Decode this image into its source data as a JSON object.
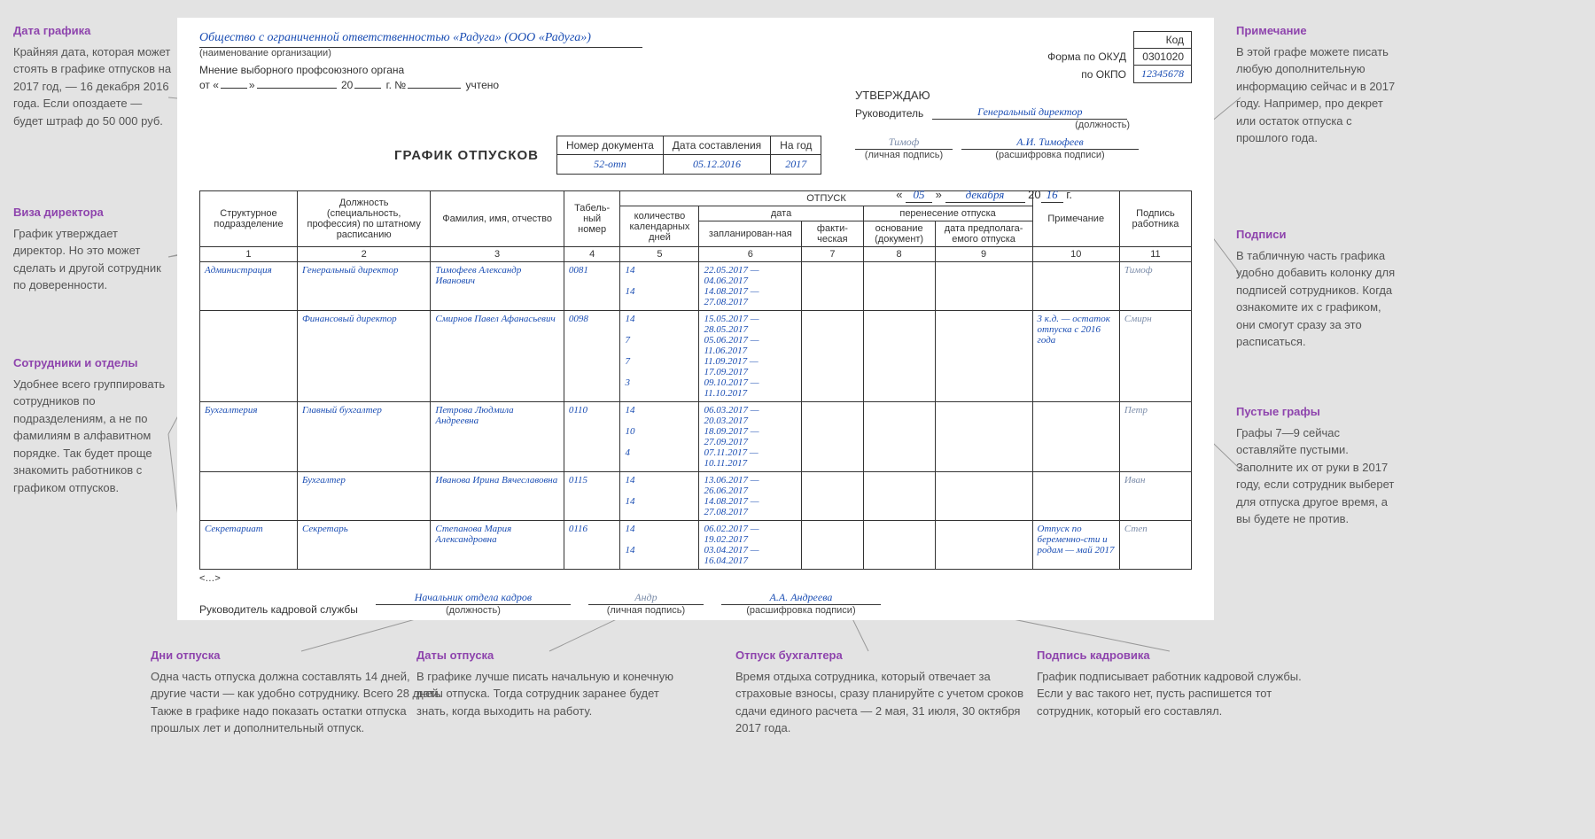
{
  "annotations": {
    "left1": {
      "title": "Дата графика",
      "body": "Крайняя дата, которая может стоять в графике отпусков на 2017 год, — 16 декабря 2016 года. Если опоздаете — будет штраф до 50 000 руб."
    },
    "left2": {
      "title": "Виза директора",
      "body": "График утверждает директор. Но это может сделать и другой сотрудник по доверенности."
    },
    "left3": {
      "title": "Сотрудники и отделы",
      "body": "Удобнее всего группировать сотрудников по подразделениям, а не по фамилиям в алфавитном порядке. Так будет проще знакомить работников с графиком отпусков."
    },
    "right1": {
      "title": "Примечание",
      "body": "В этой графе можете писать любую дополнительную информацию сейчас и в 2017 году. Например, про декрет или остаток отпуска с прошлого года."
    },
    "right2": {
      "title": "Подписи",
      "body": "В табличную часть графика удобно добавить колонку для подписей сотрудников. Когда ознакомите их с графиком, они смогут сразу за это расписаться."
    },
    "right3": {
      "title": "Пустые графы",
      "body": "Графы 7—9 сейчас оставляйте пустыми. Заполните их от руки в 2017 году, если сотрудник выберет для отпуска другое время, а вы будете не против."
    },
    "bottom1": {
      "title": "Дни отпуска",
      "body": "Одна часть отпуска должна составлять 14 дней, другие части — как удобно сотруднику. Всего 28 дней. Также в графике надо показать остатки отпуска прошлых лет и дополнительный отпуск."
    },
    "bottom2": {
      "title": "Даты отпуска",
      "body": "В графике лучше писать начальную и конечную даты отпуска. Тогда сотрудник заранее будет знать, когда выходить на работу."
    },
    "bottom3": {
      "title": "Отпуск бухгалтера",
      "body": "Время отдыха сотрудника, который отвечает за страховые взносы, сразу планируйте с учетом сроков сдачи единого расчета — 2 мая, 31 июля, 30 октября 2017 года."
    },
    "bottom4": {
      "title": "Подпись кадровика",
      "body": "График подписывает работник кадровой службы. Если у вас такого нет, пусть распишется тот сотрудник, который его составлял."
    }
  },
  "doc": {
    "org_name": "Общество с ограниченной ответственностью «Радуга» (ООО «Радуга»)",
    "org_label": "(наименование организации)",
    "prof_line": "Мнение выборного профсоюзного органа",
    "prof_from": "от «",
    "prof_year": "20",
    "prof_num": "г. №",
    "prof_accounted": "учтено",
    "code_label": "Код",
    "okud_label": "Форма по ОКУД",
    "okud_value": "0301020",
    "okpo_label": "по ОКПО",
    "okpo_value": "12345678",
    "approve": "УТВЕРЖДАЮ",
    "approve_role": "Руководитель",
    "approve_position": "Генеральный директор",
    "approve_pos_label": "(должность)",
    "approve_sign": "Тимоф",
    "approve_sign_label": "(личная подпись)",
    "approve_decipher": "А.И. Тимофеев",
    "approve_decipher_label": "(расшифровка подписи)",
    "title": "ГРАФИК ОТПУСКОВ",
    "meta": {
      "docnum_label": "Номер документа",
      "docnum": "52-отп",
      "date_label": "Дата составления",
      "date": "05.12.2016",
      "year_label": "На год",
      "year": "2017"
    },
    "date_app": {
      "day": "05",
      "month": "декабря",
      "yy_prefix": "20",
      "yy": "16",
      "g": "г."
    },
    "columns": {
      "c1": "Структурное подразделение",
      "c2": "Должность (специальность, профессия) по штатному расписанию",
      "c3": "Фамилия, имя, отчество",
      "c4": "Табель-ный номер",
      "grp_otp": "ОТПУСК",
      "c5": "количество календарных дней",
      "c6h": "дата",
      "c6": "запланирован-ная",
      "c7": "факти-ческая",
      "c8h": "перенесение отпуска",
      "c8": "основание (документ)",
      "c9": "дата предполага-емого отпуска",
      "c10": "Примечание",
      "c11": "Подпись работника"
    },
    "rows": [
      {
        "dept": "Администрация",
        "pos": "Генеральный директор",
        "fio": "Тимофеев Александр Иванович",
        "tab": "0081",
        "days": "14\n\n14",
        "planned": "22.05.2017 — 04.06.2017\n14.08.2017 — 27.08.2017",
        "note": "",
        "sig": "Тимоф"
      },
      {
        "dept": "",
        "pos": "Финансовый директор",
        "fio": "Смирнов Павел Афанасьевич",
        "tab": "0098",
        "days": "14\n\n7\n\n7\n\n3",
        "planned": "15.05.2017 — 28.05.2017\n05.06.2017 — 11.06.2017\n11.09.2017 — 17.09.2017\n09.10.2017 — 11.10.2017",
        "note": "3 к.д. — остаток отпуска с 2016 года",
        "sig": "Смирн"
      },
      {
        "dept": "Бухгалтерия",
        "pos": "Главный бухгалтер",
        "fio": "Петрова Людмила Андреевна",
        "tab": "0110",
        "days": "14\n\n10\n\n4",
        "planned": "06.03.2017 — 20.03.2017\n18.09.2017 — 27.09.2017\n07.11.2017 — 10.11.2017",
        "note": "",
        "sig": "Петр"
      },
      {
        "dept": "",
        "pos": "Бухгалтер",
        "fio": "Иванова Ирина Вячеславовна",
        "tab": "0115",
        "days": "14\n\n14",
        "planned": "13.06.2017 — 26.06.2017\n14.08.2017 — 27.08.2017",
        "note": "",
        "sig": "Иван"
      },
      {
        "dept": "Секретариат",
        "pos": "Секретарь",
        "fio": "Степанова Мария Александровна",
        "tab": "0116",
        "days": "14\n\n14",
        "planned": "06.02.2017 — 19.02.2017\n03.04.2017 — 16.04.2017",
        "note": "Отпуск по беременно-сти и родам — май 2017",
        "sig": "Степ"
      }
    ],
    "footer": {
      "ellipsis": "<…>",
      "hr_lead_label": "Руководитель кадровой службы",
      "hr_pos": "Начальник отдела кадров",
      "hr_pos_label": "(должность)",
      "hr_sign": "Андр",
      "hr_sign_label": "(личная подпись)",
      "hr_decipher": "А.А. Андреева",
      "hr_decipher_label": "(расшифровка подписи)"
    }
  }
}
